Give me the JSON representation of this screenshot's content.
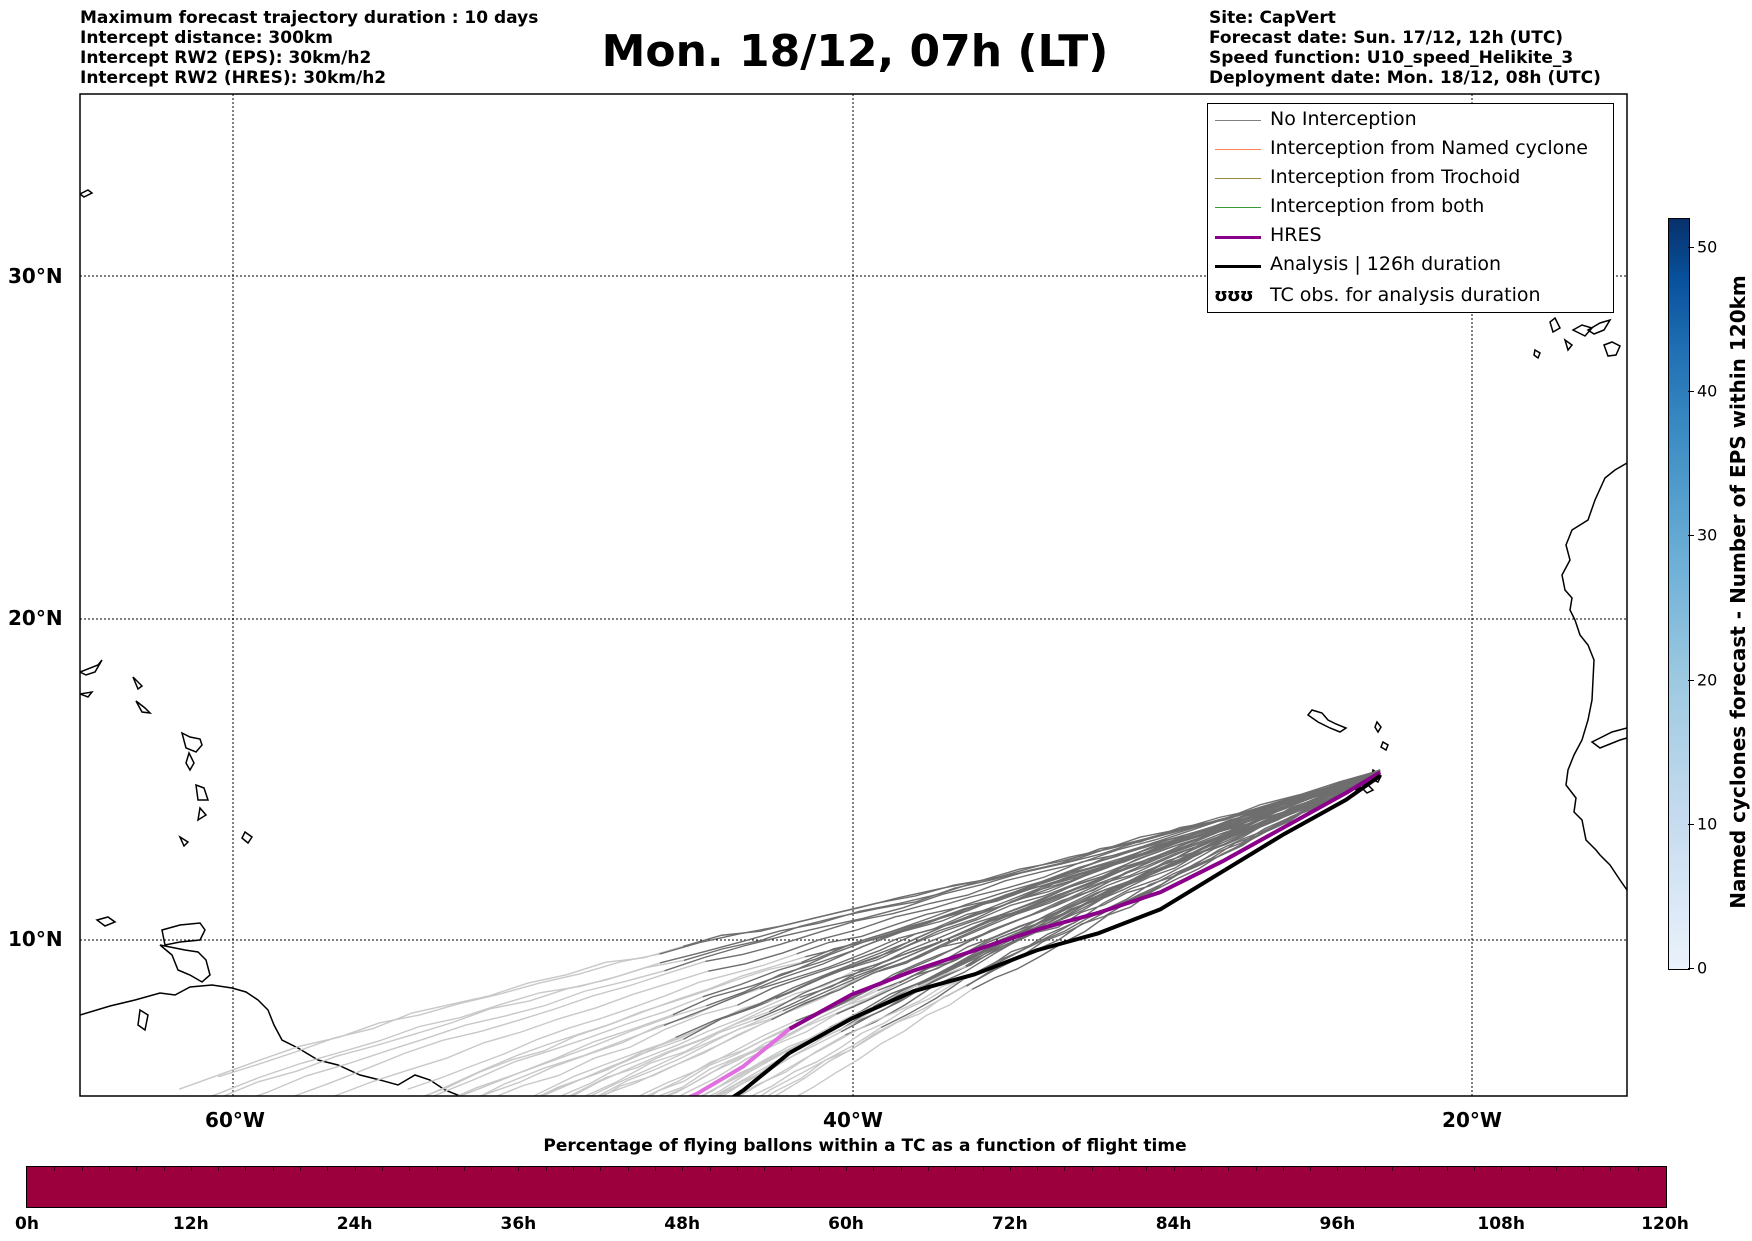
{
  "header": {
    "left_lines": [
      "Maximum forecast trajectory duration : 10 days",
      "Intercept distance: 300km",
      "Intercept RW2 (EPS):  30km/h2",
      "Intercept RW2 (HRES): 30km/h2"
    ],
    "title": "Mon. 18/12, 07h (LT)",
    "right_lines": [
      "Site: CapVert",
      "Forecast date: Sun. 17/12, 12h (UTC)",
      "Speed function: U10_speed_Helikite_3",
      "Deployment date: Mon. 18/12, 08h (UTC)"
    ]
  },
  "map": {
    "lon_labels": [
      "60°W",
      "40°W",
      "20°W"
    ],
    "lat_labels": [
      "30°N",
      "20°N",
      "10°N"
    ],
    "launch_site": {
      "lon": -22.9,
      "lat": 14.9
    },
    "hres_track": [
      [
        -22.9,
        14.9
      ],
      [
        -24,
        14.3
      ],
      [
        -26,
        13.3
      ],
      [
        -28,
        12.3
      ],
      [
        -30,
        11.4
      ],
      [
        -32,
        10.8
      ],
      [
        -34,
        10.3
      ],
      [
        -36,
        9.7
      ],
      [
        -38,
        9.1
      ],
      [
        -40,
        8.4
      ],
      [
        -42,
        7.4
      ],
      [
        -43.5,
        6.3
      ],
      [
        -45,
        5.5
      ],
      [
        -46,
        5.1
      ]
    ],
    "analysis_track": [
      [
        -22.9,
        14.8
      ],
      [
        -24,
        14.1
      ],
      [
        -26,
        13.1
      ],
      [
        -28,
        12.0
      ],
      [
        -30,
        10.9
      ],
      [
        -32,
        10.2
      ],
      [
        -34,
        9.7
      ],
      [
        -36,
        9.0
      ],
      [
        -38,
        8.5
      ],
      [
        -40,
        7.7
      ],
      [
        -42,
        6.7
      ],
      [
        -43.5,
        5.6
      ],
      [
        -44.5,
        5.0
      ]
    ]
  },
  "legend": {
    "items": [
      {
        "label": "No Interception",
        "color": "#808080",
        "width": 1.2
      },
      {
        "label": "Interception from Named cyclone",
        "color": "#ff7f50",
        "width": 1.2
      },
      {
        "label": "Interception from Trochoid",
        "color": "#9a8a3a",
        "width": 1.2
      },
      {
        "label": "Interception from both",
        "color": "#3a9a3a",
        "width": 1.2
      },
      {
        "label": "HRES",
        "color": "#8b008b",
        "width": 3.5
      },
      {
        "label": "Analysis | 126h duration",
        "color": "#000000",
        "width": 3.5
      }
    ],
    "tc_glyph": "ʊʊʊ",
    "tc_label": "TC obs. for analysis duration"
  },
  "colorbar": {
    "label": "Named cyclones forecast - Number of EPS within 120km",
    "ticks": [
      "0",
      "10",
      "20",
      "30",
      "40",
      "50"
    ],
    "max": 52
  },
  "percentage_bar": {
    "title": "Percentage of flying ballons within a TC as a function of flight time",
    "ticks": [
      "0h",
      "12h",
      "24h",
      "36h",
      "48h",
      "60h",
      "72h",
      "84h",
      "96h",
      "108h",
      "120h"
    ],
    "color": "#9c003d"
  }
}
